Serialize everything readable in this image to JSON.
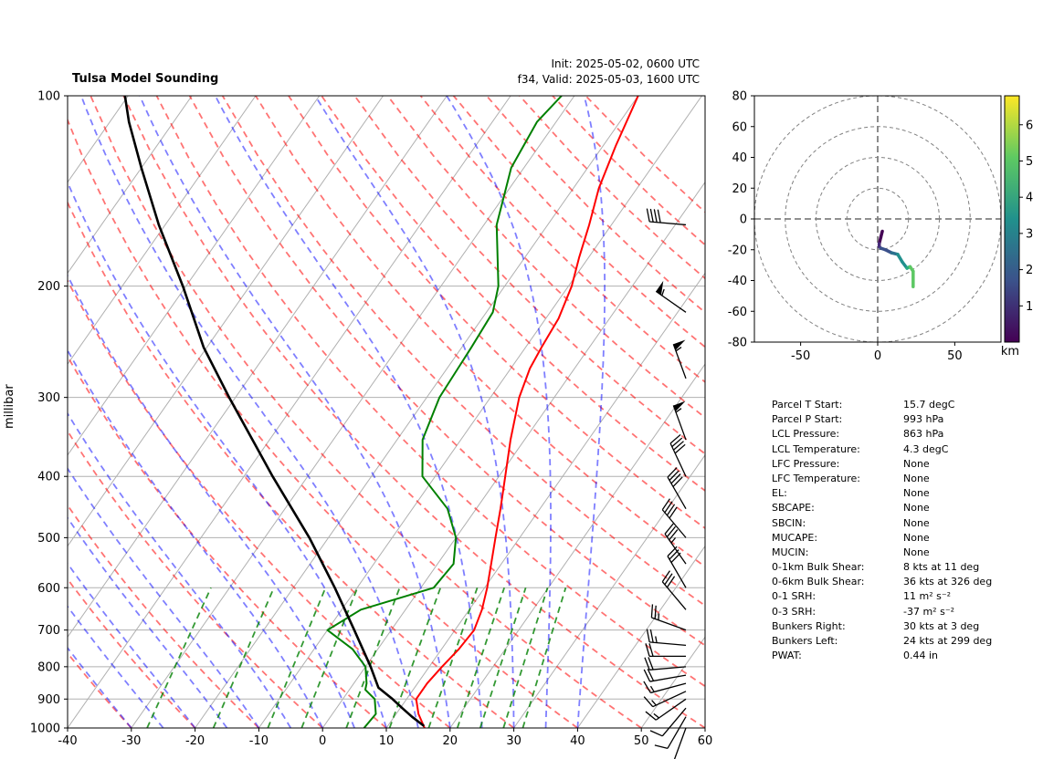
{
  "header": {
    "title": "Tulsa Model Sounding",
    "init": "Init: 2025-05-02, 0600 UTC",
    "valid": "f34, Valid: 2025-05-03, 1600 UTC"
  },
  "skewt": {
    "ylabel": "millibar",
    "x_ticks": [
      -40,
      -30,
      -20,
      -10,
      0,
      10,
      20,
      30,
      40,
      50,
      60
    ],
    "p_ticks": [
      100,
      200,
      300,
      400,
      500,
      600,
      700,
      800,
      900,
      1000
    ]
  },
  "hodograph": {
    "x_ticks": [
      -50,
      0,
      50
    ],
    "y_ticks": [
      80,
      60,
      40,
      20,
      0,
      -20,
      -40,
      -60,
      -80
    ],
    "colorbar_ticks": [
      1,
      2,
      3,
      4,
      5,
      6
    ],
    "colorbar_label": "km"
  },
  "colors": {
    "temperature": "#ff0000",
    "dewpoint": "#008000",
    "parcel": "#000000",
    "dry_adiabat": "#ff0000",
    "moist_adiabat": "#0000ff",
    "mixing_ratio": "#008000"
  },
  "chart_data": [
    {
      "type": "line",
      "name": "skew-t",
      "xlim": [
        -40,
        60
      ],
      "ylim": [
        1000,
        100
      ],
      "y_scale": "log",
      "grid": true,
      "series": [
        {
          "name": "temperature",
          "color": "#ff0000",
          "p": [
            1000,
            950,
            900,
            850,
            800,
            750,
            700,
            650,
            600,
            550,
            500,
            450,
            400,
            350,
            300,
            270,
            250,
            225,
            200,
            180,
            160,
            140,
            120,
            100
          ],
          "t": [
            16,
            13.5,
            11.5,
            11.5,
            12,
            12.7,
            13,
            12,
            10.4,
            8.4,
            6.2,
            3.8,
            1.0,
            -2.2,
            -5.5,
            -7.0,
            -7.5,
            -8.0,
            -9.5,
            -11.5,
            -13.5,
            -16.0,
            -18.0,
            -20.0
          ]
        },
        {
          "name": "dewpoint",
          "color": "#008000",
          "p": [
            1000,
            950,
            900,
            870,
            850,
            800,
            750,
            700,
            650,
            600,
            550,
            500,
            450,
            400,
            350,
            300,
            250,
            220,
            200,
            160,
            130,
            110,
            100
          ],
          "t": [
            6.5,
            6.8,
            5.0,
            2.5,
            2.0,
            0.0,
            -4.0,
            -10.0,
            -7.0,
            2.0,
            2.5,
            0.0,
            -4.5,
            -12.0,
            -16.0,
            -18.0,
            -18.5,
            -19.0,
            -21.0,
            -28.0,
            -32.0,
            -33.0,
            -32.0
          ]
        },
        {
          "name": "parcel",
          "color": "#000000",
          "p": [
            993,
            960,
            930,
            900,
            863,
            800,
            700,
            600,
            500,
            400,
            300,
            250,
            200,
            160,
            130,
            110,
            100
          ],
          "t": [
            15.7,
            12.8,
            10.3,
            7.8,
            4.3,
            0.8,
            -5.8,
            -13.5,
            -23.0,
            -35.5,
            -51.0,
            -60.5,
            -70.5,
            -81.0,
            -90.0,
            -97.0,
            -100.5
          ]
        }
      ],
      "wind_barbs": [
        {
          "p": 1000,
          "dir": 200,
          "speed": 10
        },
        {
          "p": 960,
          "dir": 210,
          "speed": 12
        },
        {
          "p": 930,
          "dir": 220,
          "speed": 12
        },
        {
          "p": 900,
          "dir": 235,
          "speed": 14
        },
        {
          "p": 875,
          "dir": 245,
          "speed": 15
        },
        {
          "p": 850,
          "dir": 255,
          "speed": 17
        },
        {
          "p": 825,
          "dir": 260,
          "speed": 18
        },
        {
          "p": 800,
          "dir": 265,
          "speed": 20
        },
        {
          "p": 770,
          "dir": 270,
          "speed": 22
        },
        {
          "p": 740,
          "dir": 275,
          "speed": 23
        },
        {
          "p": 700,
          "dir": 290,
          "speed": 25
        },
        {
          "p": 650,
          "dir": 320,
          "speed": 30
        },
        {
          "p": 600,
          "dir": 330,
          "speed": 32
        },
        {
          "p": 550,
          "dir": 325,
          "speed": 35
        },
        {
          "p": 500,
          "dir": 320,
          "speed": 38
        },
        {
          "p": 450,
          "dir": 330,
          "speed": 40
        },
        {
          "p": 400,
          "dir": 335,
          "speed": 42
        },
        {
          "p": 350,
          "dir": 340,
          "speed": 55
        },
        {
          "p": 280,
          "dir": 340,
          "speed": 55
        },
        {
          "p": 220,
          "dir": 305,
          "speed": 55
        },
        {
          "p": 160,
          "dir": 275,
          "speed": 40
        }
      ]
    },
    {
      "type": "line",
      "name": "hodograph",
      "xlim": [
        -80,
        80
      ],
      "ylim": [
        -80,
        80
      ],
      "rings": [
        20,
        40,
        60,
        80
      ],
      "u": [
        3,
        2,
        1,
        1,
        2,
        5,
        9,
        13,
        16,
        19,
        21,
        23,
        23
      ],
      "v": [
        -8,
        -12,
        -16,
        -18,
        -19,
        -20,
        -22,
        -23,
        -28,
        -32,
        -31,
        -34,
        -44
      ],
      "height_km": [
        0.1,
        0.4,
        0.8,
        1.2,
        1.6,
        2.0,
        2.6,
        3.2,
        3.8,
        4.3,
        4.8,
        5.3,
        5.8
      ]
    }
  ],
  "params": [
    {
      "label": "Parcel T Start:",
      "value": "15.7 degC"
    },
    {
      "label": "Parcel P Start:",
      "value": "993 hPa"
    },
    {
      "label": "LCL Pressure:",
      "value": "863 hPa"
    },
    {
      "label": "LCL Temperature:",
      "value": "4.3 degC"
    },
    {
      "label": "LFC Pressure:",
      "value": "None"
    },
    {
      "label": "LFC Temperature:",
      "value": "None"
    },
    {
      "label": "EL:",
      "value": "None"
    },
    {
      "label": "SBCAPE:",
      "value": "None"
    },
    {
      "label": "SBCIN:",
      "value": "None"
    },
    {
      "label": "MUCAPE:",
      "value": "None"
    },
    {
      "label": "MUCIN:",
      "value": "None"
    },
    {
      "label": "0-1km Bulk Shear:",
      "value": "8 kts at 11 deg"
    },
    {
      "label": "0-6km Bulk Shear:",
      "value": "36 kts at 326 deg"
    },
    {
      "label": "0-1 SRH:",
      "value": "11 m² s⁻²"
    },
    {
      "label": "0-3 SRH:",
      "value": "-37 m² s⁻²"
    },
    {
      "label": "Bunkers Right:",
      "value": "30 kts at 3 deg"
    },
    {
      "label": "Bunkers Left:",
      "value": "24 kts at 299 deg"
    },
    {
      "label": "PWAT:",
      "value": "0.44 in"
    }
  ]
}
